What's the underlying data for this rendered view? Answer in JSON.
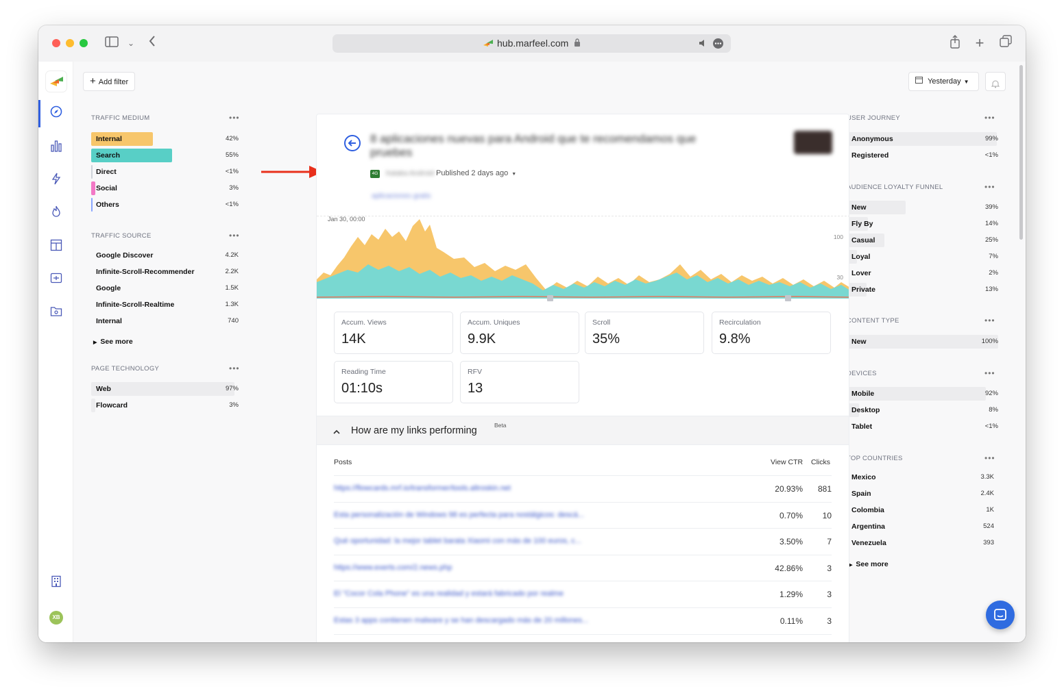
{
  "browser": {
    "url": "hub.marfeel.com",
    "icons": [
      "sidebar-icon",
      "chevron-down-icon",
      "back-icon",
      "site-favicon",
      "lock-icon",
      "speaker-icon",
      "more-icon",
      "share-icon",
      "new-tab-icon",
      "tabs-icon"
    ]
  },
  "toolbar": {
    "add_filter": "Add filter",
    "date_range": "Yesterday"
  },
  "left": {
    "traffic_medium": {
      "title": "TRAFFIC MEDIUM",
      "items": [
        {
          "label": "Internal",
          "value": "42%",
          "color": "#f7c66b",
          "fill": 0.42
        },
        {
          "label": "Search",
          "value": "55%",
          "color": "#58cfc6",
          "fill": 0.55
        },
        {
          "label": "Direct",
          "value": "<1%",
          "color": "#cfd3da",
          "fill": 0.0
        },
        {
          "label": "Social",
          "value": "3%",
          "color": "#f279c6",
          "fill": 0.03
        },
        {
          "label": "Others",
          "value": "<1%",
          "color": "#8aa6ff",
          "fill": 0.0
        }
      ]
    },
    "traffic_source": {
      "title": "TRAFFIC SOURCE",
      "items": [
        {
          "label": "Google Discover",
          "value": "4.2K"
        },
        {
          "label": "Infinite-Scroll-Recommender",
          "value": "2.2K"
        },
        {
          "label": "Google",
          "value": "1.5K"
        },
        {
          "label": "Infinite-Scroll-Realtime",
          "value": "1.3K"
        },
        {
          "label": "Internal",
          "value": "740"
        }
      ],
      "see_more": "See more"
    },
    "page_technology": {
      "title": "PAGE TECHNOLOGY",
      "items": [
        {
          "label": "Web",
          "value": "97%",
          "fill": 0.97
        },
        {
          "label": "Flowcard",
          "value": "3%",
          "fill": 0.03
        }
      ]
    }
  },
  "article": {
    "title": "8 aplicaciones nuevas para Android que te recomendamos que pruebes",
    "author": "Xataka Android",
    "published": "Published 2 days ago",
    "section": "aplicaciones gratis",
    "chart_start": "Jan 30, 00:00",
    "y_labels": [
      "100",
      "30"
    ],
    "kpis": [
      {
        "label": "Accum. Views",
        "value": "14K"
      },
      {
        "label": "Accum. Uniques",
        "value": "9.9K"
      },
      {
        "label": "Scroll",
        "value": "35%"
      },
      {
        "label": "Recirculation",
        "value": "9.8%"
      },
      {
        "label": "Reading Time",
        "value": "01:10s"
      },
      {
        "label": "RFV",
        "value": "13"
      }
    ],
    "links": {
      "title": "How are my links performing",
      "badge": "Beta",
      "columns": {
        "posts": "Posts",
        "ctr": "View CTR",
        "clicks": "Clicks"
      },
      "rows": [
        {
          "post": "https://flowcards.mrf.io/transformer/tools.altroskin.net",
          "ctr": "20.93%",
          "clicks": "881"
        },
        {
          "post": "Esta personalización de Windows 98 es perfecta para nostálgicos: descá...",
          "ctr": "0.70%",
          "clicks": "10"
        },
        {
          "post": "Qué oportunidad: la mejor tablet barata Xiaomi con más de 100 euros, c...",
          "ctr": "3.50%",
          "clicks": "7"
        },
        {
          "post": "https://www.exerts.com/2.news.php",
          "ctr": "42.86%",
          "clicks": "3"
        },
        {
          "post": "El \"Cocor Cola Phone\" es una realidad y estará fabricado por realme",
          "ctr": "1.29%",
          "clicks": "3"
        },
        {
          "post": "Estas 3 apps contienen malware y se han descargado más de 20 millones...",
          "ctr": "0.11%",
          "clicks": "3"
        }
      ]
    }
  },
  "right": {
    "user_journey": {
      "title": "USER JOURNEY",
      "items": [
        {
          "label": "Anonymous",
          "value": "99%",
          "fill": 0.99
        },
        {
          "label": "Registered",
          "value": "<1%",
          "fill": 0.0
        }
      ]
    },
    "loyalty": {
      "title": "AUDIENCE LOYALTY FUNNEL",
      "items": [
        {
          "label": "New",
          "value": "39%",
          "fill": 0.39
        },
        {
          "label": "Fly By",
          "value": "14%",
          "fill": 0.14
        },
        {
          "label": "Casual",
          "value": "25%",
          "fill": 0.25
        },
        {
          "label": "Loyal",
          "value": "7%",
          "fill": 0.07
        },
        {
          "label": "Lover",
          "value": "2%",
          "fill": 0.02
        },
        {
          "label": "Private",
          "value": "13%",
          "fill": 0.13
        }
      ]
    },
    "content_type": {
      "title": "CONTENT TYPE",
      "items": [
        {
          "label": "New",
          "value": "100%",
          "fill": 1.0
        }
      ]
    },
    "devices": {
      "title": "DEVICES",
      "items": [
        {
          "label": "Mobile",
          "value": "92%",
          "fill": 0.92
        },
        {
          "label": "Desktop",
          "value": "8%",
          "fill": 0.08
        },
        {
          "label": "Tablet",
          "value": "<1%",
          "fill": 0.0
        }
      ]
    },
    "countries": {
      "title": "TOP COUNTRIES",
      "items": [
        {
          "label": "Mexico",
          "value": "3.3K"
        },
        {
          "label": "Spain",
          "value": "2.4K"
        },
        {
          "label": "Colombia",
          "value": "1K"
        },
        {
          "label": "Argentina",
          "value": "524"
        },
        {
          "label": "Venezuela",
          "value": "393"
        }
      ],
      "see_more": "See more"
    },
    "user_avatar": "XB"
  }
}
